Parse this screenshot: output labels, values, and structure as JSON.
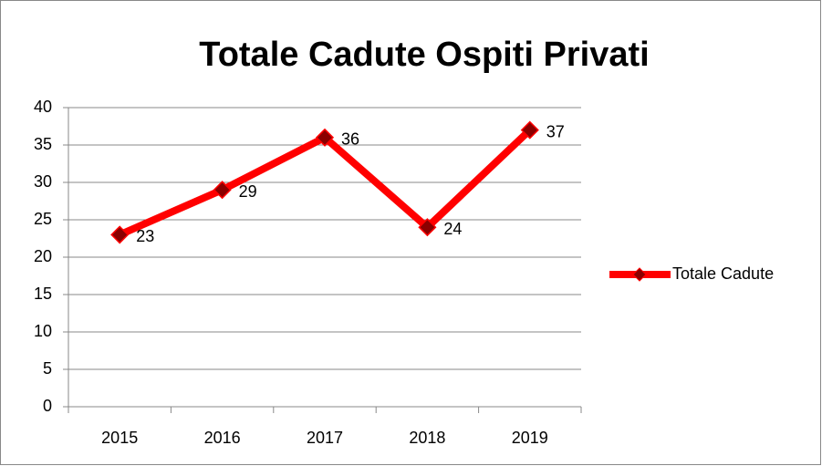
{
  "chart_data": {
    "type": "line",
    "title": "Totale Cadute Ospiti Privati",
    "categories": [
      "2015",
      "2016",
      "2017",
      "2018",
      "2019"
    ],
    "series": [
      {
        "name": "Totale Cadute",
        "color": "#ff0000",
        "marker_color": "#8b0000",
        "values": [
          23,
          29,
          36,
          24,
          37
        ]
      }
    ],
    "ylim": [
      0,
      40
    ],
    "yticks": [
      0,
      5,
      10,
      15,
      20,
      25,
      30,
      35,
      40
    ],
    "grid": true,
    "legend": "right",
    "data_labels": true
  }
}
